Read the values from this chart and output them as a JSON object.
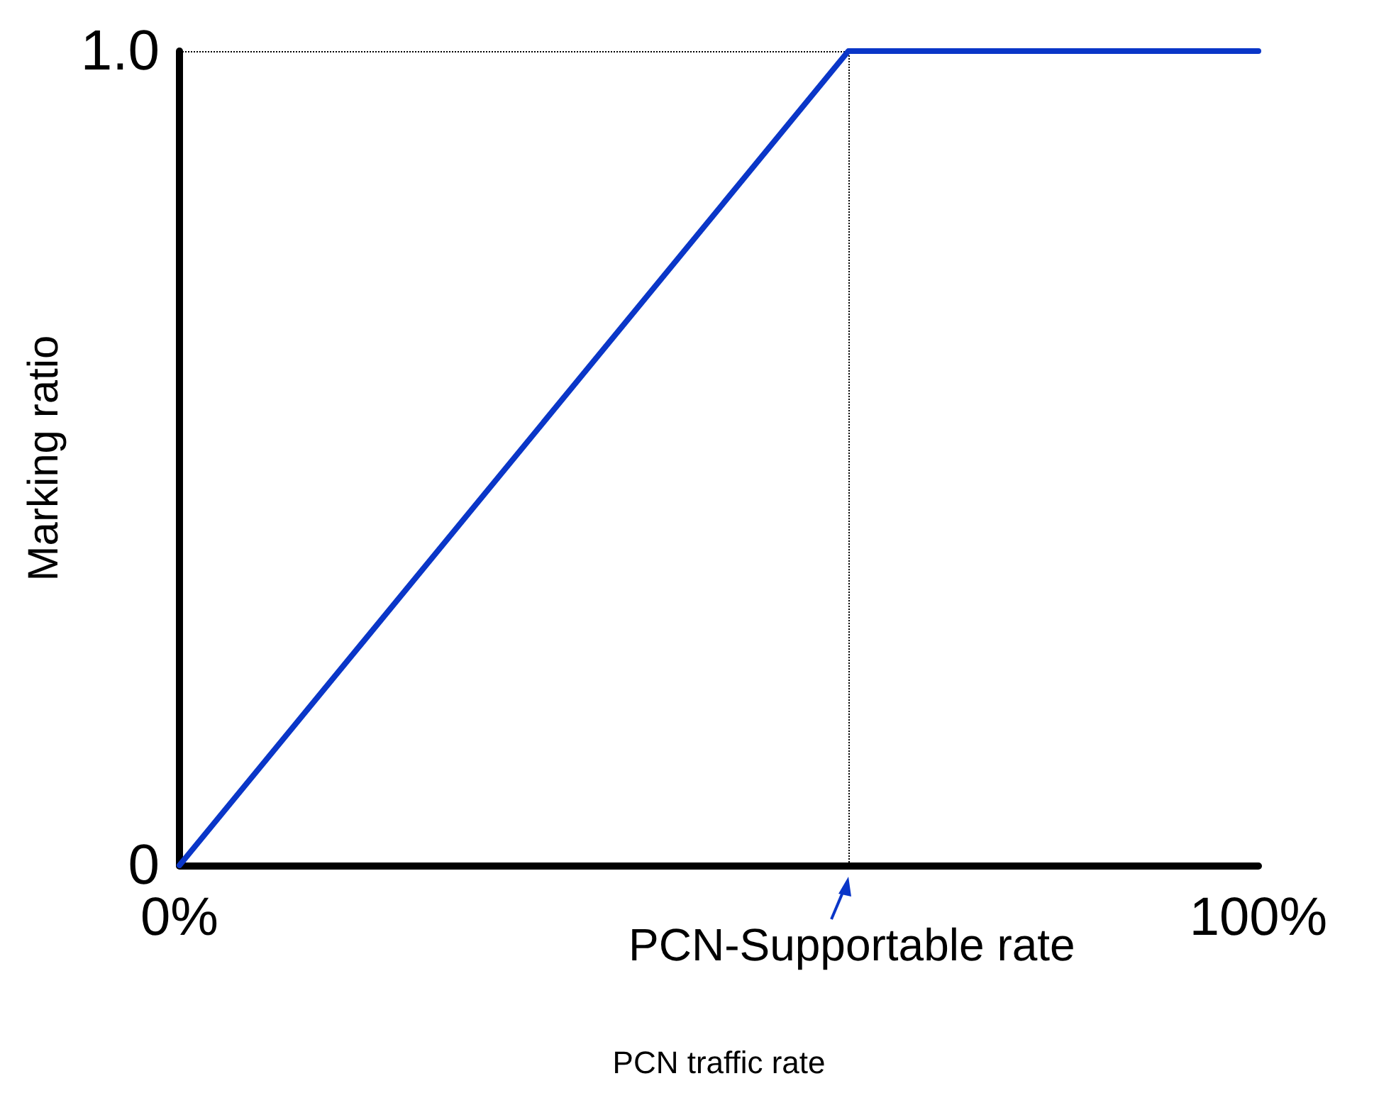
{
  "chart_data": {
    "type": "line",
    "xlabel": "PCN traffic rate",
    "ylabel": "Marking ratio",
    "x": [
      0,
      62,
      100
    ],
    "series": [
      {
        "color": "#0a36c8",
        "values": [
          0,
          1,
          1
        ]
      }
    ],
    "xlim": [
      0,
      100
    ],
    "ylim": [
      0,
      1
    ],
    "xticks": [
      {
        "value": 0,
        "label": "0%"
      },
      {
        "value": 100,
        "label": "100%"
      }
    ],
    "yticks": [
      {
        "value": 0,
        "label": "0"
      },
      {
        "value": 1,
        "label": "1.0"
      }
    ],
    "ref_lines": [
      {
        "axis": "x",
        "value": 62,
        "line_style": "dotted",
        "color": "#000000"
      },
      {
        "axis": "y",
        "value": 1,
        "line_style": "dotted",
        "color": "#000000"
      }
    ],
    "annotations": [
      {
        "text": "PCN-Supportable rate",
        "x": 62,
        "y": 0
      }
    ],
    "grid": false,
    "marker": "none",
    "line_style": "solid"
  }
}
